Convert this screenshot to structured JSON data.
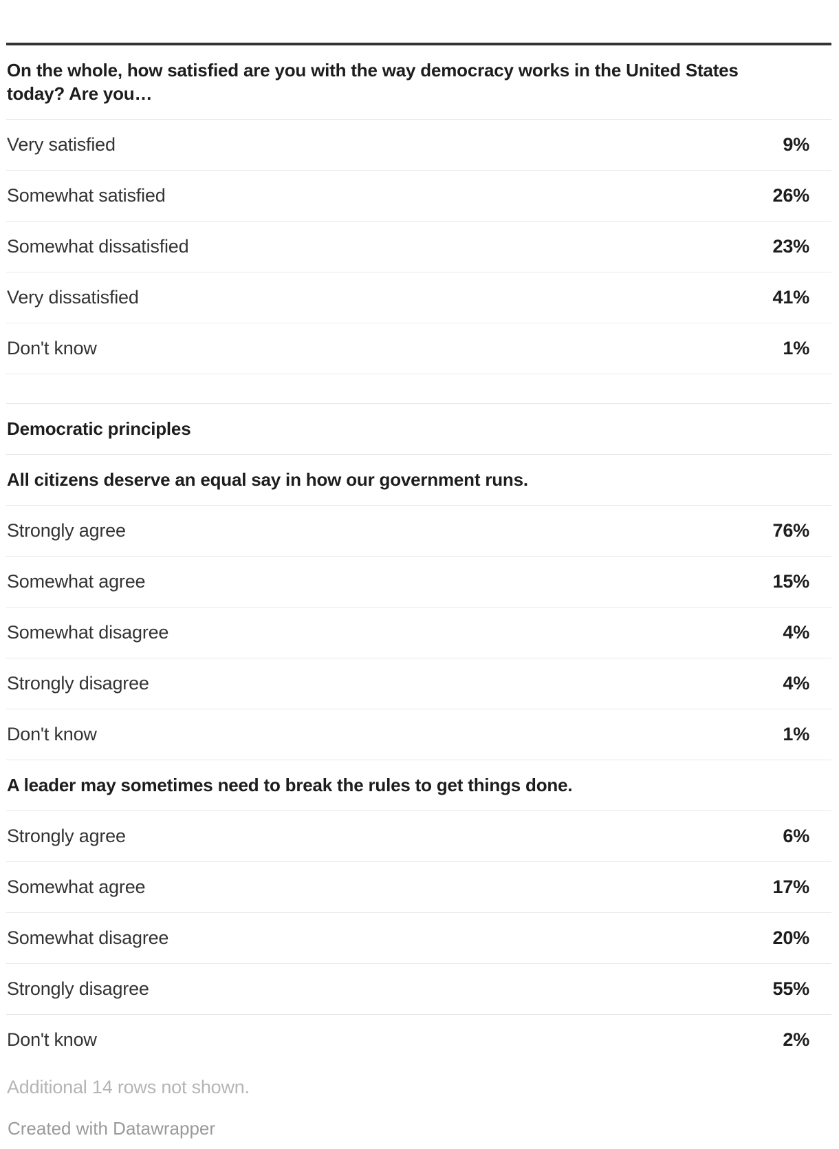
{
  "ui": {
    "q1": {
      "title": "On the whole, how satisfied are you with the way democracy works in the United States\ntoday? Are you…",
      "rows": [
        {
          "label": "Very satisfied",
          "value": "9%"
        },
        {
          "label": "Somewhat satisfied",
          "value": "26%"
        },
        {
          "label": "Somewhat dissatisfied",
          "value": "23%"
        },
        {
          "label": "Very dissatisfied",
          "value": "41%"
        },
        {
          "label": "Don't know",
          "value": "1%"
        }
      ]
    },
    "category": "Democratic principles",
    "q2": {
      "title": "All citizens deserve an equal say in how our government runs.",
      "rows": [
        {
          "label": "Strongly agree",
          "value": "76%"
        },
        {
          "label": "Somewhat agree",
          "value": "15%"
        },
        {
          "label": "Somewhat disagree",
          "value": "4%"
        },
        {
          "label": "Strongly disagree",
          "value": "4%"
        },
        {
          "label": "Don't know",
          "value": "1%"
        }
      ]
    },
    "q3": {
      "title": "A leader may sometimes need to break the rules to get things done.",
      "rows": [
        {
          "label": "Strongly agree",
          "value": "6%"
        },
        {
          "label": "Somewhat agree",
          "value": "17%"
        },
        {
          "label": "Somewhat disagree",
          "value": "20%"
        },
        {
          "label": "Strongly disagree",
          "value": "55%"
        },
        {
          "label": "Don't know",
          "value": "2%"
        }
      ]
    },
    "note": "Additional 14 rows not shown.",
    "attribution": "Created with Datawrapper"
  },
  "chart_data": {
    "type": "table",
    "blocks": [
      {
        "question": "On the whole, how satisfied are you with the way democracy works in the United States today? Are you…",
        "categories": [
          "Very satisfied",
          "Somewhat satisfied",
          "Somewhat dissatisfied",
          "Very dissatisfied",
          "Don't know"
        ],
        "values_pct": [
          9,
          26,
          23,
          41,
          1
        ]
      },
      {
        "section": "Democratic principles"
      },
      {
        "question": "All citizens deserve an equal say in how our government runs.",
        "categories": [
          "Strongly agree",
          "Somewhat agree",
          "Somewhat disagree",
          "Strongly disagree",
          "Don't know"
        ],
        "values_pct": [
          76,
          15,
          4,
          4,
          1
        ]
      },
      {
        "question": "A leader may sometimes need to break the rules to get things done.",
        "categories": [
          "Strongly agree",
          "Somewhat agree",
          "Somewhat disagree",
          "Strongly disagree",
          "Don't know"
        ],
        "values_pct": [
          6,
          17,
          20,
          55,
          2
        ]
      }
    ],
    "note": "Additional 14 rows not shown.",
    "attribution": "Created with Datawrapper"
  },
  "colors": {
    "top_rule": "#333333",
    "divider": "#e8e8e8",
    "label_text": "#333333",
    "bold_text": "#1d1d1d",
    "note_text": "#b5b5b6",
    "attribution_text": "#9a9a9a",
    "background": "#ffffff"
  }
}
